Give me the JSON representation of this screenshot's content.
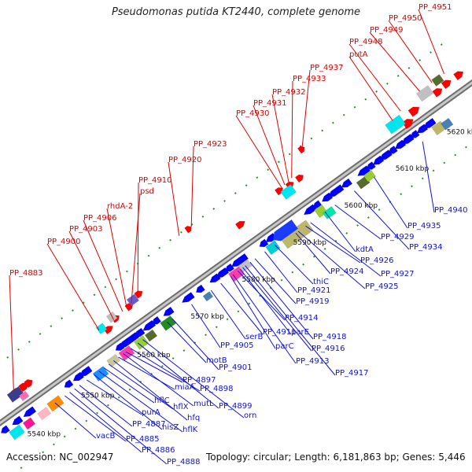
{
  "title": "Pseudomonas putida KT2440, complete genome",
  "accession": "Accession: NC_002947",
  "topology": "Topology: circular; Length: 6,181,863 bp; Genes: 5,446",
  "colors": {
    "backbone": "#8a8a8a",
    "forward_label": "#e00000",
    "reverse_label": "#1010e0",
    "forward_gene": "#ff0000",
    "reverse_gene": "#0000ff",
    "green_dots": "#2e8b2e"
  },
  "ticks": [
    "5540 kbp",
    "5550 kbp",
    "5560 kbp",
    "5570 kbp",
    "5580 kbp",
    "5590 kbp",
    "5600 kbp",
    "5610 kbp",
    "5620 kbp"
  ],
  "forward_labels": [
    "PP_4883",
    "PP_4900",
    "PP_4903",
    "PP_4906",
    "rhdA-2",
    "psd",
    "PP_4910",
    "PP_4920",
    "PP_4923",
    "PP_4930",
    "PP_4931",
    "PP_4932",
    "PP_4933",
    "PP_4937",
    "putA",
    "PP_4948",
    "PP_4949",
    "PP_4950",
    "PP_4951"
  ],
  "reverse_labels": [
    "vacB",
    "PP_4885",
    "PP_4886",
    "PP_4888",
    "PP_4887",
    "purA",
    "hisZ",
    "hflK",
    "hflC",
    "hflX",
    "hfq",
    "miaA",
    "mutL",
    "PP_4897",
    "PP_4898",
    "PP_4899",
    "orn",
    "motB",
    "PP_4901",
    "PP_4905",
    "serB",
    "PP_4911",
    "parC",
    "PP_4913",
    "PP_4914",
    "parE",
    "PP_4916",
    "PP_4917",
    "PP_4918",
    "PP_4919",
    "PP_4921",
    "thiC",
    "PP_4924",
    "PP_4925",
    "PP_4926",
    "PP_4927",
    "kdtA",
    "PP_4929",
    "PP_4934",
    "PP_4935",
    "PP_4940"
  ]
}
